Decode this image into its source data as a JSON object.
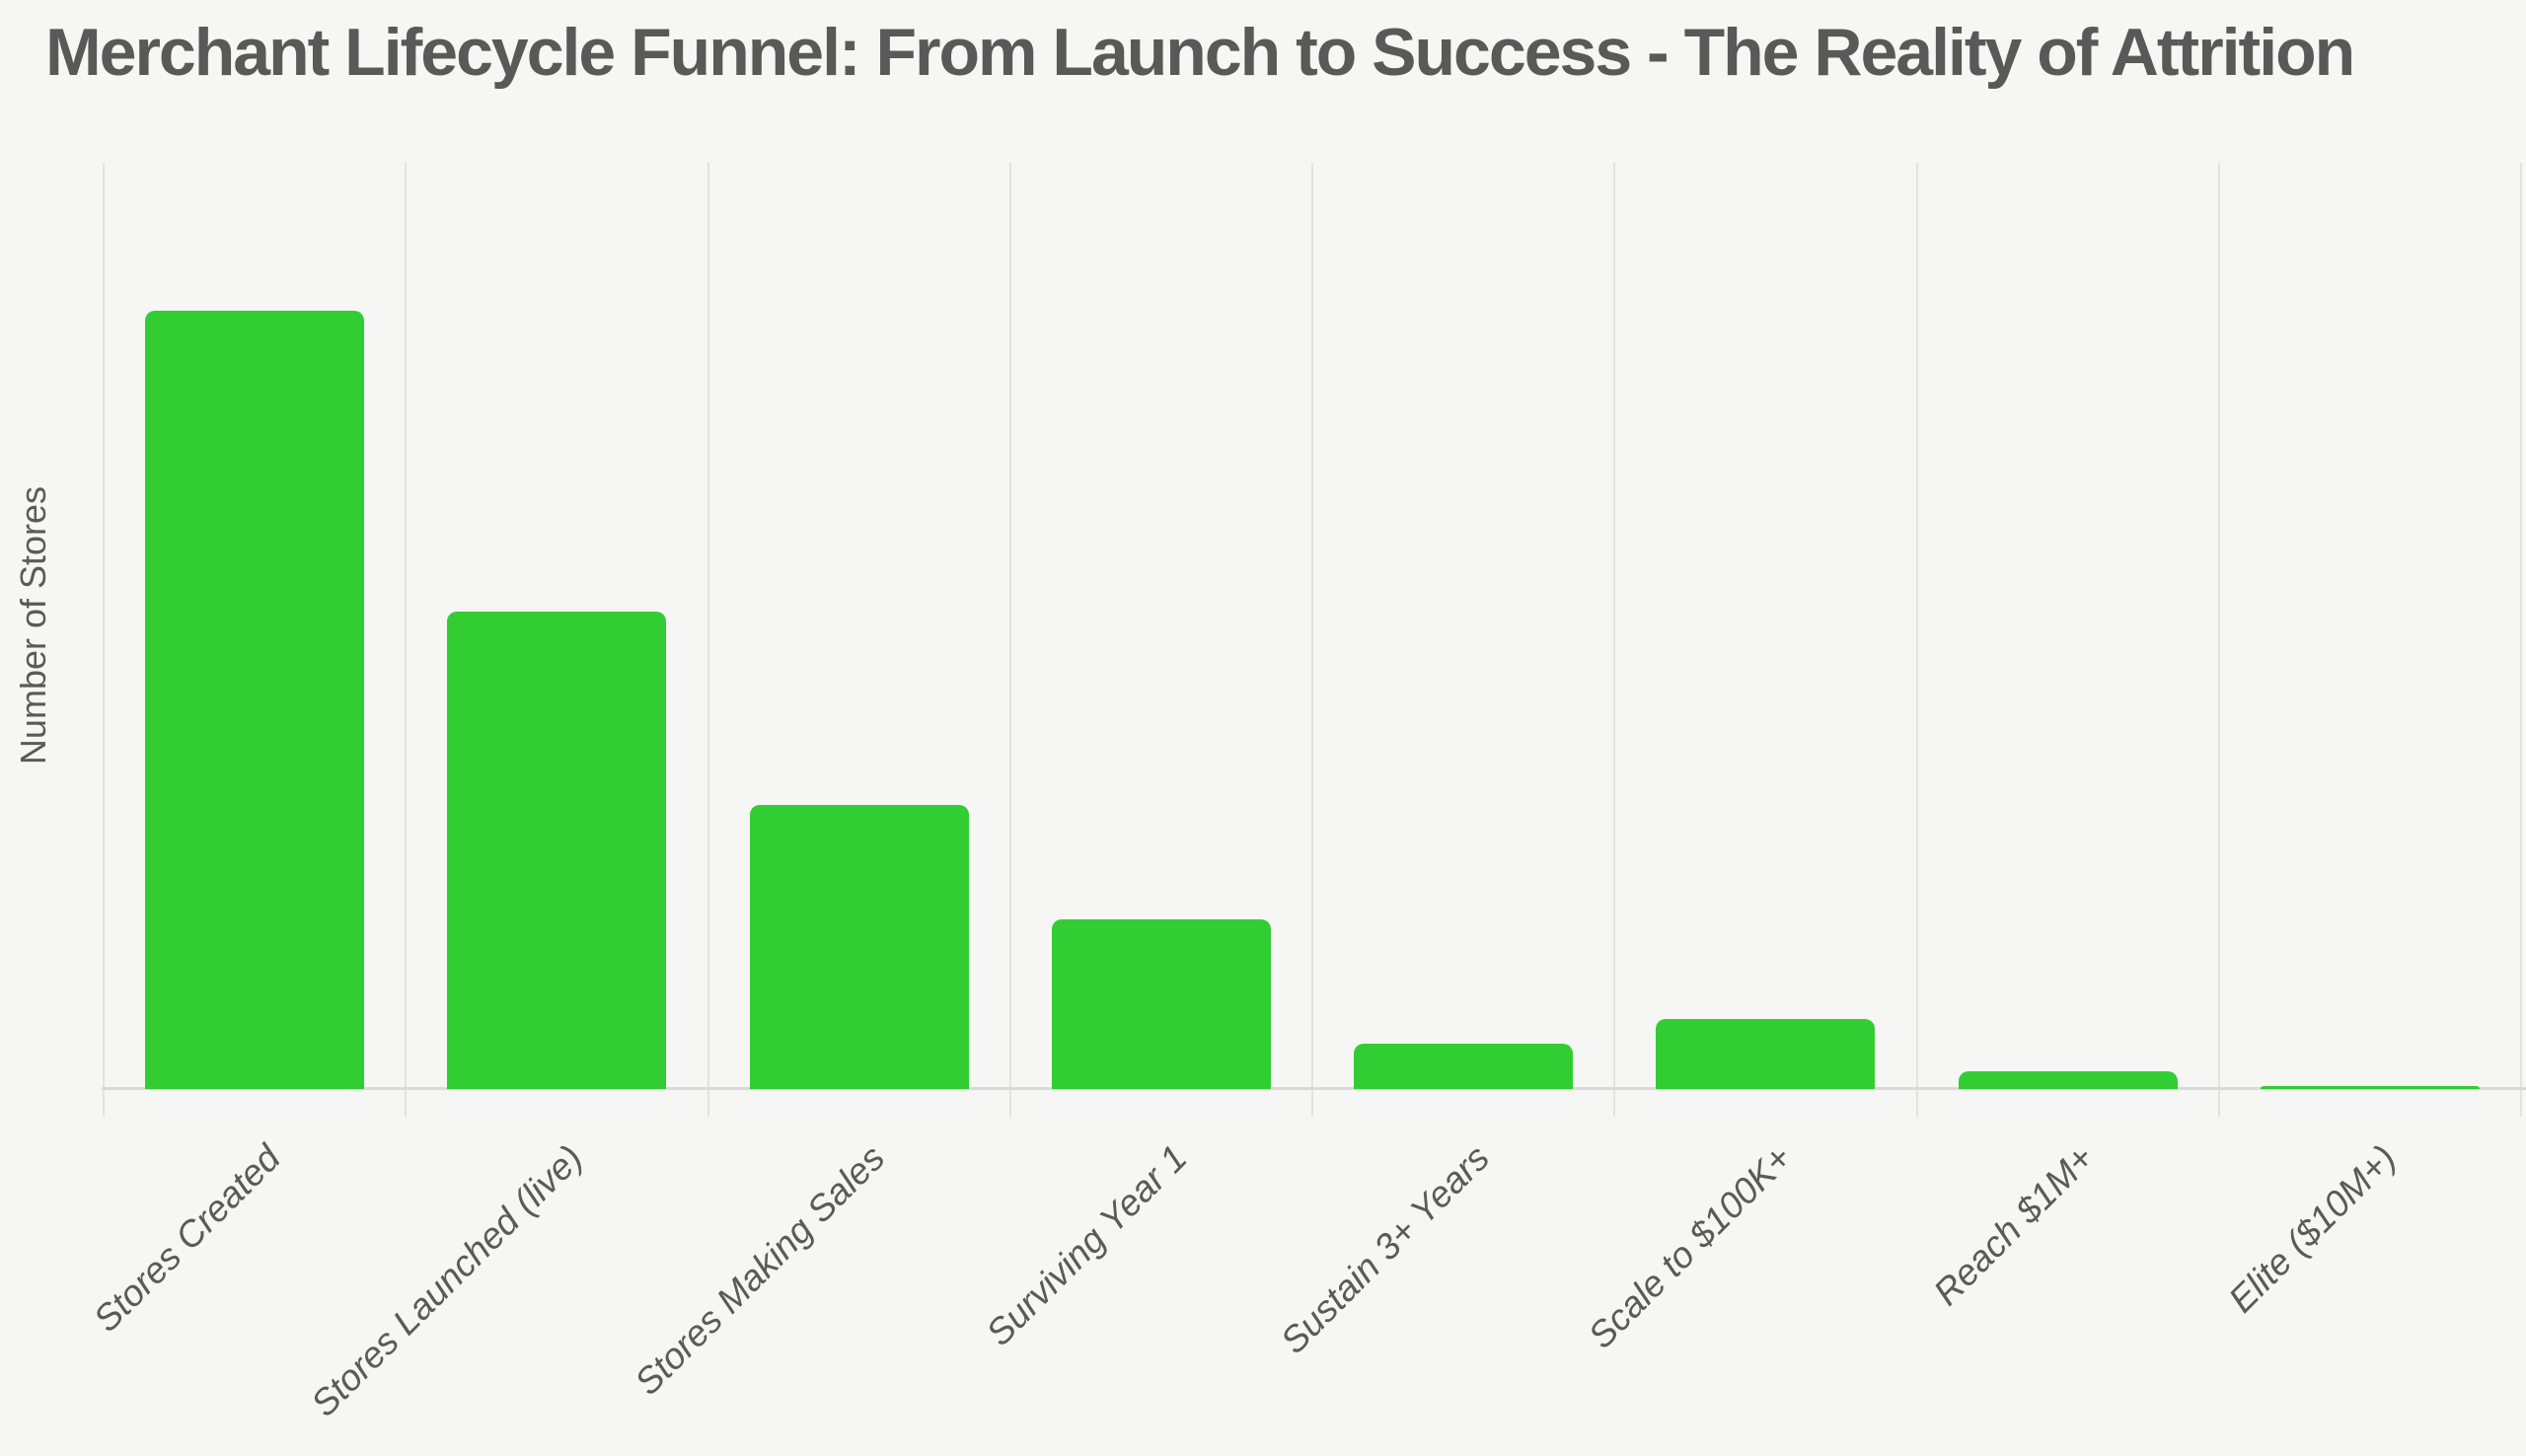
{
  "title": "Merchant Lifecycle Funnel: From Launch to Success - The Reality of Attrition",
  "colors": {
    "background": "#F6F6F4",
    "bar": "#32CD32",
    "gridline": "#E2E2E0",
    "axis_line": "#D9D9D9",
    "title_text": "#595959",
    "label_text": "#5A5A5A"
  },
  "chart_data": {
    "type": "bar",
    "title": "Merchant Lifecycle Funnel: From Launch to Success - The Reality of Attrition",
    "xlabel": "",
    "ylabel": "Number of Stores",
    "categories": [
      "Stores Created",
      "Stores Launched (live)",
      "Stores Making Sales",
      "Surviving Year 1",
      "Sustain 3+ Years",
      "Scale to $100K+",
      "Reach $1M+",
      "Elite ($10M+)"
    ],
    "values": [
      84,
      51.5,
      30.7,
      18.3,
      4.9,
      7.6,
      1.9,
      0.3
    ],
    "value_note": "relative bar heights as % of y-axis max; y-axis shows no numeric tick labels",
    "ylim": [
      0,
      100
    ],
    "y_tick_labels": "none",
    "grid": "vertical gridlines at category boundaries only",
    "legend": "none",
    "bar_color": "#32CD32",
    "x_label_rotation_deg": 45,
    "x_label_style": "italic"
  }
}
